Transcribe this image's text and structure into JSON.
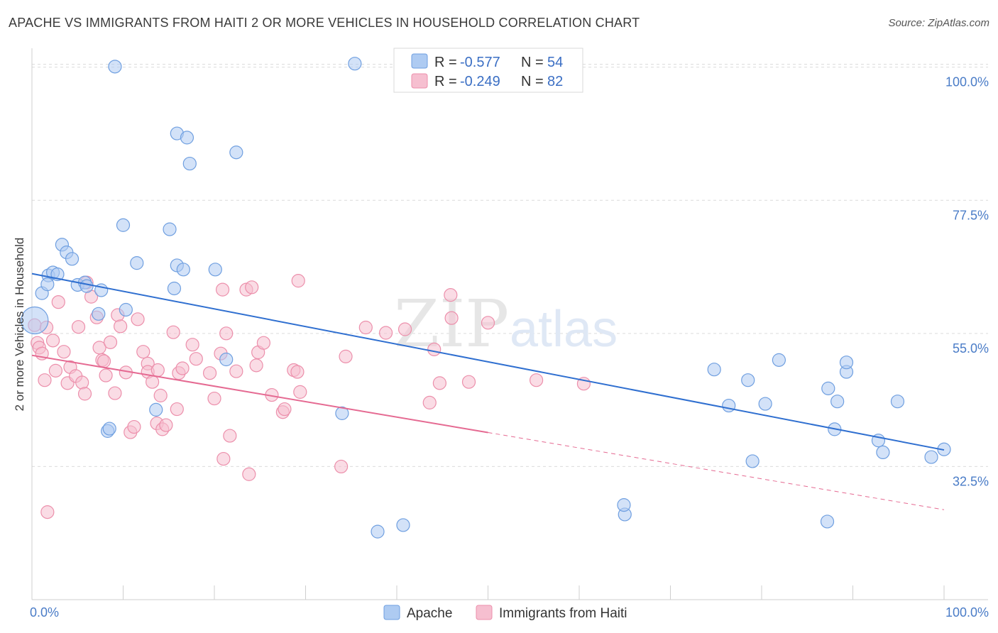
{
  "title": "APACHE VS IMMIGRANTS FROM HAITI 2 OR MORE VEHICLES IN HOUSEHOLD CORRELATION CHART",
  "source": "Source: ZipAtlas.com",
  "watermark": {
    "zip": "ZIP",
    "atlas": "atlas"
  },
  "colors": {
    "apache_fill": "#aecbf2",
    "apache_stroke": "#6f9fe0",
    "apache_line": "#2f6fd0",
    "haiti_fill": "#f6bfd0",
    "haiti_stroke": "#ec8fab",
    "haiti_line": "#e56a92",
    "grid": "#dcdcdc",
    "tick_text": "#4a7cc7"
  },
  "legend": {
    "rows": [
      {
        "r_label": "R =",
        "r_value": "-0.577",
        "n_label": "N =",
        "n_value": "54"
      },
      {
        "r_label": "R =",
        "r_value": "-0.249",
        "n_label": "N =",
        "n_value": "82"
      }
    ]
  },
  "bottom_legend": {
    "apache": "Apache",
    "haiti": "Immigrants from Haiti"
  },
  "chart_data": {
    "type": "scatter",
    "title": "APACHE VS IMMIGRANTS FROM HAITI 2 OR MORE VEHICLES IN HOUSEHOLD CORRELATION CHART",
    "xlabel": "",
    "ylabel": "2 or more Vehicles in Household",
    "xlim": [
      0,
      100
    ],
    "ylim": [
      10,
      102
    ],
    "x_tick_labels": [
      "0.0%",
      "100.0%"
    ],
    "y_ticks": [
      32.5,
      55.0,
      77.5,
      100.0
    ],
    "y_tick_labels": [
      "32.5%",
      "55.0%",
      "77.5%",
      "100.0%"
    ],
    "grid": true,
    "legend_position": "top-center",
    "series": [
      {
        "name": "Apache",
        "r": -0.577,
        "n": 54,
        "trend": {
          "x": [
            0,
            100
          ],
          "y": [
            65.1,
            35.3
          ],
          "dashed_from": null
        },
        "points": [
          [
            0.3,
            57.2
          ],
          [
            1.1,
            61.8
          ],
          [
            1.8,
            64.8
          ],
          [
            1.7,
            63.3
          ],
          [
            2.3,
            65.3
          ],
          [
            2.8,
            65.0
          ],
          [
            3.3,
            70.0
          ],
          [
            3.8,
            68.7
          ],
          [
            4.4,
            67.6
          ],
          [
            5.0,
            63.2
          ],
          [
            5.8,
            63.6
          ],
          [
            6.0,
            63.0
          ],
          [
            7.3,
            58.3
          ],
          [
            7.6,
            62.3
          ],
          [
            8.3,
            38.5
          ],
          [
            8.5,
            38.9
          ],
          [
            9.1,
            100.1
          ],
          [
            10.0,
            73.3
          ],
          [
            10.3,
            59.0
          ],
          [
            11.5,
            66.9
          ],
          [
            13.6,
            42.1
          ],
          [
            15.1,
            72.6
          ],
          [
            15.6,
            62.6
          ],
          [
            15.9,
            66.5
          ],
          [
            15.9,
            88.8
          ],
          [
            16.6,
            65.8
          ],
          [
            17.0,
            88.1
          ],
          [
            17.3,
            83.7
          ],
          [
            20.1,
            65.8
          ],
          [
            21.3,
            50.6
          ],
          [
            22.4,
            85.6
          ],
          [
            34.0,
            41.5
          ],
          [
            35.4,
            100.6
          ],
          [
            37.9,
            21.5
          ],
          [
            40.7,
            22.6
          ],
          [
            65.0,
            24.4
          ],
          [
            64.9,
            26.0
          ],
          [
            74.8,
            48.9
          ],
          [
            76.4,
            42.8
          ],
          [
            78.5,
            47.1
          ],
          [
            79.0,
            33.4
          ],
          [
            80.4,
            43.1
          ],
          [
            81.9,
            50.5
          ],
          [
            87.2,
            23.2
          ],
          [
            87.3,
            45.7
          ],
          [
            88.0,
            38.8
          ],
          [
            88.3,
            43.5
          ],
          [
            89.3,
            48.5
          ],
          [
            89.3,
            50.1
          ],
          [
            92.8,
            36.9
          ],
          [
            93.3,
            34.9
          ],
          [
            94.9,
            43.5
          ],
          [
            98.6,
            34.1
          ],
          [
            100.0,
            35.4
          ]
        ]
      },
      {
        "name": "Immigrants from Haiti",
        "r": -0.249,
        "n": 82,
        "trend": {
          "x": [
            0,
            100
          ],
          "y": [
            51.3,
            25.2
          ],
          "dashed_from": 50
        },
        "points": [
          [
            0.3,
            56.4
          ],
          [
            0.6,
            53.4
          ],
          [
            0.8,
            52.6
          ],
          [
            1.1,
            51.6
          ],
          [
            1.4,
            47.1
          ],
          [
            1.6,
            56.0
          ],
          [
            1.7,
            24.8
          ],
          [
            2.3,
            53.8
          ],
          [
            2.6,
            48.7
          ],
          [
            2.9,
            60.3
          ],
          [
            3.5,
            51.9
          ],
          [
            3.9,
            46.6
          ],
          [
            4.2,
            49.3
          ],
          [
            4.8,
            47.8
          ],
          [
            5.1,
            56.1
          ],
          [
            5.5,
            46.7
          ],
          [
            5.8,
            44.8
          ],
          [
            6.0,
            63.6
          ],
          [
            6.5,
            61.2
          ],
          [
            7.1,
            57.7
          ],
          [
            7.4,
            52.6
          ],
          [
            7.7,
            50.5
          ],
          [
            7.9,
            50.3
          ],
          [
            8.1,
            47.9
          ],
          [
            8.6,
            53.5
          ],
          [
            9.1,
            44.9
          ],
          [
            9.4,
            58.1
          ],
          [
            9.7,
            56.2
          ],
          [
            10.3,
            48.4
          ],
          [
            10.8,
            38.3
          ],
          [
            11.2,
            39.2
          ],
          [
            11.6,
            57.4
          ],
          [
            12.2,
            51.9
          ],
          [
            12.7,
            49.9
          ],
          [
            12.7,
            48.5
          ],
          [
            13.2,
            46.8
          ],
          [
            13.7,
            39.8
          ],
          [
            13.8,
            48.8
          ],
          [
            14.1,
            44.5
          ],
          [
            14.3,
            38.8
          ],
          [
            14.7,
            39.5
          ],
          [
            15.5,
            55.2
          ],
          [
            15.9,
            42.2
          ],
          [
            16.1,
            48.3
          ],
          [
            16.5,
            49.1
          ],
          [
            17.6,
            53.1
          ],
          [
            18.0,
            50.7
          ],
          [
            19.5,
            48.3
          ],
          [
            20.0,
            44.0
          ],
          [
            20.7,
            51.6
          ],
          [
            20.9,
            62.4
          ],
          [
            21.0,
            33.8
          ],
          [
            21.3,
            55.0
          ],
          [
            21.7,
            37.7
          ],
          [
            22.4,
            48.6
          ],
          [
            23.5,
            62.4
          ],
          [
            23.8,
            31.2
          ],
          [
            24.1,
            62.8
          ],
          [
            24.6,
            49.6
          ],
          [
            24.8,
            51.8
          ],
          [
            25.4,
            53.4
          ],
          [
            27.5,
            41.7
          ],
          [
            27.7,
            42.2
          ],
          [
            28.7,
            48.8
          ],
          [
            29.1,
            48.5
          ],
          [
            29.2,
            63.9
          ],
          [
            29.4,
            45.1
          ],
          [
            33.9,
            32.5
          ],
          [
            34.4,
            51.1
          ],
          [
            36.6,
            56.0
          ],
          [
            38.8,
            55.1
          ],
          [
            40.9,
            55.7
          ],
          [
            44.1,
            52.3
          ],
          [
            44.7,
            46.6
          ],
          [
            45.9,
            61.5
          ],
          [
            46.0,
            57.6
          ],
          [
            47.9,
            46.8
          ],
          [
            50.0,
            56.8
          ],
          [
            55.3,
            47.1
          ],
          [
            60.5,
            46.5
          ],
          [
            26.3,
            44.6
          ],
          [
            43.6,
            43.3
          ]
        ]
      }
    ]
  }
}
